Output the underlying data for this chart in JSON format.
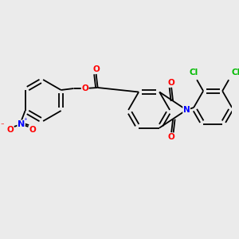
{
  "background_color": "#ebebeb",
  "bond_color": "#000000",
  "atom_colors": {
    "O": "#ff0000",
    "N": "#0000ff",
    "Cl": "#00bb00",
    "C": "#000000"
  },
  "lw": 1.3,
  "fs": 7.5
}
